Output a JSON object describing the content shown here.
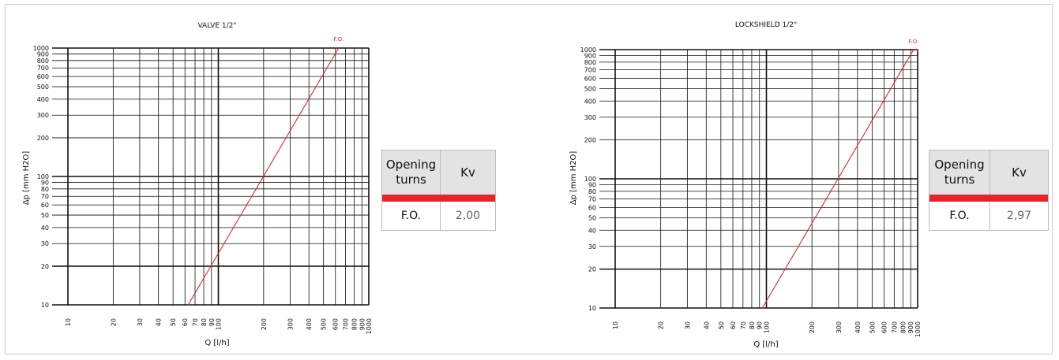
{
  "colors": {
    "curve": "#e3262b",
    "grid": "#111111",
    "band": "#e3262b",
    "header_bg": "#e3e3e3"
  },
  "chart_data": [
    {
      "type": "line",
      "title": "VALVE  1/2\"",
      "xlabel": "Q [l/h]",
      "ylabel": "Δp [mm H2O]",
      "xscale": "log",
      "yscale": "log",
      "xlim": [
        10,
        1000
      ],
      "ylim": [
        10,
        1000
      ],
      "xticks": [
        10,
        20,
        30,
        40,
        50,
        60,
        70,
        80,
        90,
        100,
        200,
        300,
        400,
        500,
        600,
        700,
        800,
        900,
        1000
      ],
      "yticks": [
        10,
        20,
        30,
        40,
        50,
        60,
        70,
        80,
        90,
        100,
        200,
        300,
        400,
        500,
        600,
        700,
        800,
        900,
        1000
      ],
      "series": [
        {
          "name": "F.O.",
          "x": [
            63,
            630
          ],
          "y": [
            10,
            1000
          ]
        }
      ],
      "table": {
        "header": [
          "Opening turns",
          "Kv"
        ],
        "rows": [
          [
            "F.O.",
            "2,00"
          ]
        ]
      }
    },
    {
      "type": "line",
      "title": "LOCKSHIELD  1/2\"",
      "xlabel": "Q [l/h]",
      "ylabel": "Δp [mm H2O]",
      "xscale": "log",
      "yscale": "log",
      "xlim": [
        10,
        1000
      ],
      "ylim": [
        10,
        1000
      ],
      "xticks": [
        10,
        20,
        30,
        40,
        50,
        60,
        70,
        80,
        90,
        100,
        200,
        300,
        400,
        500,
        600,
        700,
        800,
        900,
        1000
      ],
      "yticks": [
        10,
        20,
        30,
        40,
        50,
        60,
        70,
        80,
        90,
        100,
        200,
        300,
        400,
        500,
        600,
        700,
        800,
        900,
        1000
      ],
      "series": [
        {
          "name": "F.O.",
          "x": [
            94,
            940
          ],
          "y": [
            10,
            1000
          ]
        }
      ],
      "table": {
        "header": [
          "Opening turns",
          "Kv"
        ],
        "rows": [
          [
            "F.O.",
            "2,97"
          ]
        ]
      }
    }
  ]
}
